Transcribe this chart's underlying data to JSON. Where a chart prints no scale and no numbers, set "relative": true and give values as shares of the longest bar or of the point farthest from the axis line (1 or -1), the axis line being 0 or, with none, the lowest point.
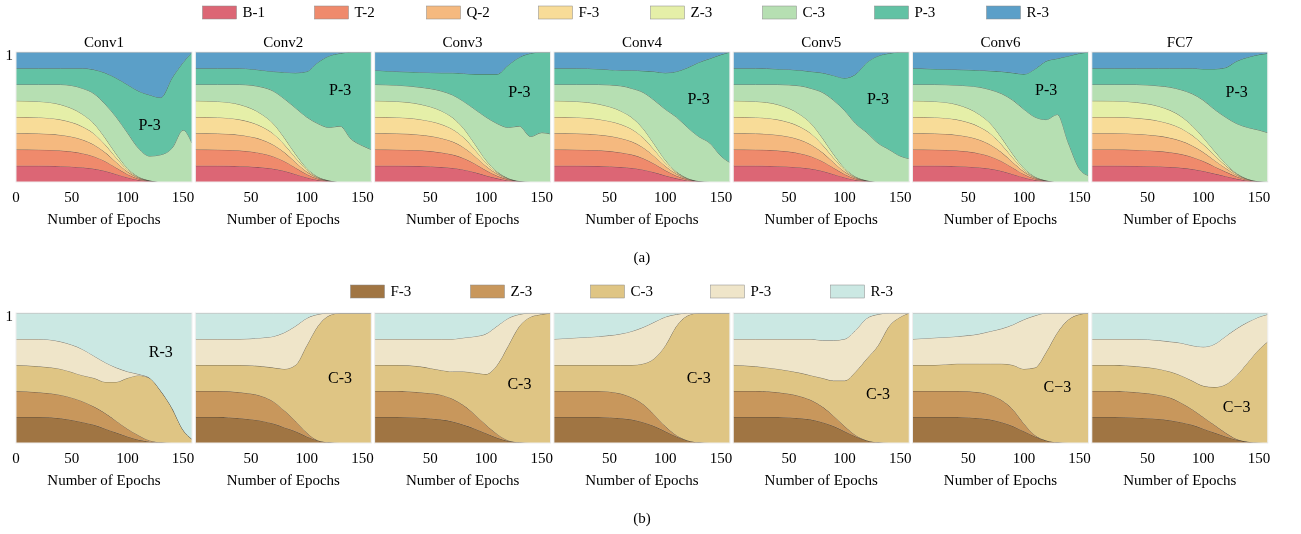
{
  "chart_data": [
    {
      "type": "area",
      "stacked": true,
      "relative": true,
      "title": "Conv1",
      "xlabel": "Number of Epochs",
      "legend": "top",
      "xlim": [
        0,
        158
      ],
      "xticks": [
        0,
        50,
        100,
        150
      ],
      "x": [
        0,
        20,
        40,
        60,
        70,
        80,
        90,
        100,
        110,
        120,
        130,
        140,
        150,
        158
      ],
      "annotations": [
        "1"
      ],
      "series": [
        {
          "name": "B-1",
          "color": "#dc6675",
          "values": [
            0.125,
            0.125,
            0.122,
            0.112,
            0.102,
            0.085,
            0.06,
            0.035,
            0.015,
            0.005,
            0,
            0,
            0,
            0
          ]
        },
        {
          "name": "T-2",
          "color": "#ef8a6c",
          "values": [
            0.125,
            0.124,
            0.12,
            0.108,
            0.095,
            0.075,
            0.05,
            0.025,
            0.01,
            0.003,
            0,
            0,
            0,
            0
          ]
        },
        {
          "name": "Q-2",
          "color": "#f5b97f",
          "values": [
            0.125,
            0.124,
            0.12,
            0.105,
            0.09,
            0.068,
            0.042,
            0.02,
            0.007,
            0.002,
            0,
            0,
            0,
            0
          ]
        },
        {
          "name": "F-3",
          "color": "#f8dc98",
          "values": [
            0.125,
            0.124,
            0.118,
            0.1,
            0.085,
            0.06,
            0.035,
            0.015,
            0.005,
            0.001,
            0,
            0,
            0,
            0
          ]
        },
        {
          "name": "Z-3",
          "color": "#e5efa8",
          "values": [
            0.125,
            0.123,
            0.116,
            0.095,
            0.078,
            0.052,
            0.028,
            0.012,
            0.004,
            0.001,
            0,
            0,
            0,
            0
          ]
        },
        {
          "name": "C-3",
          "color": "#b6dfb2",
          "values": [
            0.125,
            0.13,
            0.154,
            0.2,
            0.23,
            0.26,
            0.285,
            0.273,
            0.219,
            0.188,
            0.21,
            0.26,
            0.4,
            0.3
          ]
        },
        {
          "name": "P-3",
          "color": "#62c2a4",
          "values": [
            0.125,
            0.125,
            0.125,
            0.155,
            0.185,
            0.24,
            0.3,
            0.37,
            0.44,
            0.47,
            0.44,
            0.54,
            0.52,
            0.7
          ]
        },
        {
          "name": "R-3",
          "color": "#5b9fc8",
          "values": [
            0.125,
            0.125,
            0.125,
            0.125,
            0.135,
            0.16,
            0.2,
            0.25,
            0.3,
            0.33,
            0.35,
            0.2,
            0.08,
            0
          ]
        }
      ]
    },
    {
      "type": "area",
      "stacked": true,
      "relative": true,
      "title": "Conv2",
      "xlabel": "Number of Epochs",
      "xlim": [
        0,
        158
      ],
      "xticks": [
        50,
        100,
        150
      ],
      "x": [
        0,
        20,
        40,
        60,
        70,
        80,
        90,
        100,
        110,
        120,
        130,
        140,
        150,
        158
      ],
      "series": [
        {
          "color": "#dc6675",
          "values": [
            0.125,
            0.125,
            0.122,
            0.112,
            0.102,
            0.085,
            0.06,
            0.035,
            0.015,
            0.005,
            0,
            0,
            0,
            0
          ]
        },
        {
          "color": "#ef8a6c",
          "values": [
            0.125,
            0.124,
            0.12,
            0.108,
            0.095,
            0.075,
            0.05,
            0.025,
            0.01,
            0.003,
            0,
            0,
            0,
            0
          ]
        },
        {
          "color": "#f5b97f",
          "values": [
            0.125,
            0.124,
            0.12,
            0.105,
            0.09,
            0.068,
            0.042,
            0.02,
            0.007,
            0.002,
            0,
            0,
            0,
            0
          ]
        },
        {
          "color": "#f8dc98",
          "values": [
            0.125,
            0.124,
            0.118,
            0.1,
            0.085,
            0.06,
            0.035,
            0.015,
            0.005,
            0.001,
            0,
            0,
            0,
            0
          ]
        },
        {
          "color": "#e5efa8",
          "values": [
            0.125,
            0.123,
            0.116,
            0.095,
            0.078,
            0.052,
            0.028,
            0.012,
            0.004,
            0.001,
            0,
            0,
            0,
            0
          ]
        },
        {
          "color": "#b6dfb2",
          "values": [
            0.125,
            0.13,
            0.154,
            0.21,
            0.25,
            0.3,
            0.355,
            0.393,
            0.409,
            0.408,
            0.43,
            0.33,
            0.28,
            0.25
          ]
        },
        {
          "name": "P-3",
          "color": "#62c2a4",
          "values": [
            0.125,
            0.125,
            0.125,
            0.13,
            0.15,
            0.205,
            0.27,
            0.35,
            0.47,
            0.55,
            0.56,
            0.67,
            0.72,
            0.75
          ]
        },
        {
          "color": "#5b9fc8",
          "values": [
            0.125,
            0.125,
            0.125,
            0.14,
            0.15,
            0.155,
            0.16,
            0.15,
            0.08,
            0.03,
            0.01,
            0,
            0,
            0
          ]
        }
      ]
    },
    {
      "type": "area",
      "stacked": true,
      "relative": true,
      "title": "Conv3",
      "xlabel": "Number of Epochs",
      "xlim": [
        0,
        158
      ],
      "xticks": [
        50,
        100,
        150
      ],
      "x": [
        0,
        20,
        40,
        60,
        70,
        80,
        90,
        100,
        110,
        120,
        130,
        140,
        150,
        158
      ],
      "series": [
        {
          "color": "#dc6675",
          "values": [
            0.125,
            0.125,
            0.123,
            0.115,
            0.108,
            0.095,
            0.075,
            0.05,
            0.028,
            0.012,
            0.004,
            0,
            0,
            0
          ]
        },
        {
          "color": "#ef8a6c",
          "values": [
            0.125,
            0.124,
            0.121,
            0.112,
            0.103,
            0.088,
            0.066,
            0.04,
            0.02,
            0.007,
            0.002,
            0,
            0,
            0
          ]
        },
        {
          "color": "#f5b97f",
          "values": [
            0.125,
            0.124,
            0.12,
            0.11,
            0.1,
            0.083,
            0.058,
            0.033,
            0.015,
            0.005,
            0.001,
            0,
            0,
            0
          ]
        },
        {
          "color": "#f8dc98",
          "values": [
            0.125,
            0.124,
            0.119,
            0.107,
            0.095,
            0.076,
            0.05,
            0.026,
            0.01,
            0.003,
            0,
            0,
            0,
            0
          ]
        },
        {
          "color": "#e5efa8",
          "values": [
            0.125,
            0.123,
            0.117,
            0.103,
            0.09,
            0.07,
            0.044,
            0.02,
            0.007,
            0.002,
            0,
            0,
            0,
            0
          ]
        },
        {
          "color": "#b6dfb2",
          "values": [
            0.125,
            0.125,
            0.13,
            0.153,
            0.174,
            0.208,
            0.267,
            0.331,
            0.37,
            0.391,
            0.423,
            0.35,
            0.38,
            0.37
          ]
        },
        {
          "name": "P-3",
          "color": "#62c2a4",
          "values": [
            0.11,
            0.105,
            0.115,
            0.14,
            0.17,
            0.215,
            0.27,
            0.33,
            0.38,
            0.48,
            0.53,
            0.64,
            0.62,
            0.63
          ]
        },
        {
          "color": "#5b9fc8",
          "values": [
            0.14,
            0.15,
            0.155,
            0.16,
            0.16,
            0.165,
            0.17,
            0.17,
            0.17,
            0.1,
            0.04,
            0.01,
            0,
            0
          ]
        }
      ]
    },
    {
      "type": "area",
      "stacked": true,
      "relative": true,
      "title": "Conv4",
      "xlabel": "Number of Epochs",
      "xlim": [
        0,
        158
      ],
      "xticks": [
        50,
        100,
        150
      ],
      "x": [
        0,
        20,
        40,
        60,
        70,
        80,
        90,
        100,
        110,
        120,
        130,
        140,
        150,
        158
      ],
      "annotations": [
        "(a)"
      ],
      "series": [
        {
          "color": "#dc6675",
          "values": [
            0.125,
            0.125,
            0.123,
            0.115,
            0.108,
            0.095,
            0.075,
            0.05,
            0.028,
            0.012,
            0.004,
            0,
            0,
            0
          ]
        },
        {
          "color": "#ef8a6c",
          "values": [
            0.125,
            0.124,
            0.121,
            0.112,
            0.103,
            0.088,
            0.066,
            0.04,
            0.02,
            0.007,
            0.002,
            0,
            0,
            0
          ]
        },
        {
          "color": "#f5b97f",
          "values": [
            0.125,
            0.124,
            0.12,
            0.11,
            0.1,
            0.083,
            0.058,
            0.033,
            0.015,
            0.005,
            0.001,
            0,
            0,
            0
          ]
        },
        {
          "color": "#f8dc98",
          "values": [
            0.125,
            0.124,
            0.119,
            0.107,
            0.095,
            0.076,
            0.05,
            0.026,
            0.01,
            0.003,
            0,
            0,
            0,
            0
          ]
        },
        {
          "color": "#e5efa8",
          "values": [
            0.125,
            0.123,
            0.117,
            0.103,
            0.09,
            0.07,
            0.044,
            0.02,
            0.007,
            0.002,
            0,
            0,
            0,
            0
          ]
        },
        {
          "color": "#b6dfb2",
          "values": [
            0.125,
            0.13,
            0.15,
            0.193,
            0.224,
            0.278,
            0.337,
            0.391,
            0.42,
            0.391,
            0.343,
            0.3,
            0.2,
            0.15
          ]
        },
        {
          "name": "P-3",
          "color": "#62c2a4",
          "values": [
            0.125,
            0.125,
            0.12,
            0.12,
            0.14,
            0.165,
            0.22,
            0.28,
            0.35,
            0.46,
            0.57,
            0.65,
            0.78,
            0.85
          ]
        },
        {
          "color": "#5b9fc8",
          "values": [
            0.125,
            0.125,
            0.13,
            0.14,
            0.14,
            0.145,
            0.15,
            0.16,
            0.15,
            0.12,
            0.08,
            0.05,
            0.02,
            0
          ]
        }
      ]
    },
    {
      "type": "area",
      "stacked": true,
      "relative": true,
      "title": "Conv5",
      "xlabel": "Number of Epochs",
      "xlim": [
        0,
        158
      ],
      "xticks": [
        50,
        100,
        150
      ],
      "x": [
        0,
        20,
        40,
        60,
        70,
        80,
        90,
        100,
        110,
        120,
        130,
        140,
        150,
        158
      ],
      "series": [
        {
          "color": "#dc6675",
          "values": [
            0.125,
            0.125,
            0.122,
            0.112,
            0.102,
            0.085,
            0.06,
            0.035,
            0.015,
            0.005,
            0,
            0,
            0,
            0
          ]
        },
        {
          "color": "#ef8a6c",
          "values": [
            0.125,
            0.124,
            0.12,
            0.108,
            0.095,
            0.075,
            0.05,
            0.025,
            0.01,
            0.003,
            0,
            0,
            0,
            0
          ]
        },
        {
          "color": "#f5b97f",
          "values": [
            0.125,
            0.124,
            0.12,
            0.105,
            0.09,
            0.068,
            0.042,
            0.02,
            0.007,
            0.002,
            0,
            0,
            0,
            0
          ]
        },
        {
          "color": "#f8dc98",
          "values": [
            0.125,
            0.124,
            0.118,
            0.1,
            0.085,
            0.06,
            0.035,
            0.015,
            0.005,
            0.001,
            0,
            0,
            0,
            0
          ]
        },
        {
          "color": "#e5efa8",
          "values": [
            0.125,
            0.123,
            0.116,
            0.095,
            0.078,
            0.052,
            0.028,
            0.012,
            0.004,
            0.001,
            0,
            0,
            0,
            0
          ]
        },
        {
          "color": "#b6dfb2",
          "values": [
            0.125,
            0.13,
            0.154,
            0.22,
            0.27,
            0.35,
            0.415,
            0.443,
            0.409,
            0.368,
            0.3,
            0.25,
            0.2,
            0.18
          ]
        },
        {
          "name": "P-3",
          "color": "#62c2a4",
          "values": [
            0.125,
            0.125,
            0.12,
            0.12,
            0.13,
            0.15,
            0.19,
            0.25,
            0.38,
            0.54,
            0.67,
            0.74,
            0.8,
            0.82
          ]
        },
        {
          "color": "#5b9fc8",
          "values": [
            0.125,
            0.125,
            0.13,
            0.14,
            0.15,
            0.16,
            0.18,
            0.2,
            0.17,
            0.08,
            0.03,
            0.01,
            0,
            0
          ]
        }
      ]
    },
    {
      "type": "area",
      "stacked": true,
      "relative": true,
      "title": "Conv6",
      "xlabel": "Number of Epochs",
      "xlim": [
        0,
        158
      ],
      "xticks": [
        50,
        100,
        150
      ],
      "x": [
        0,
        20,
        40,
        60,
        70,
        80,
        90,
        100,
        110,
        120,
        130,
        140,
        150,
        158
      ],
      "series": [
        {
          "color": "#dc6675",
          "values": [
            0.125,
            0.125,
            0.122,
            0.112,
            0.102,
            0.085,
            0.06,
            0.035,
            0.015,
            0.005,
            0,
            0,
            0,
            0
          ]
        },
        {
          "color": "#ef8a6c",
          "values": [
            0.125,
            0.124,
            0.12,
            0.108,
            0.095,
            0.075,
            0.05,
            0.025,
            0.01,
            0.003,
            0,
            0,
            0,
            0
          ]
        },
        {
          "color": "#f5b97f",
          "values": [
            0.125,
            0.124,
            0.12,
            0.105,
            0.09,
            0.068,
            0.042,
            0.02,
            0.007,
            0.002,
            0,
            0,
            0,
            0
          ]
        },
        {
          "color": "#f8dc98",
          "values": [
            0.125,
            0.124,
            0.118,
            0.1,
            0.085,
            0.06,
            0.035,
            0.015,
            0.005,
            0.001,
            0,
            0,
            0,
            0
          ]
        },
        {
          "color": "#e5efa8",
          "values": [
            0.125,
            0.123,
            0.116,
            0.095,
            0.078,
            0.052,
            0.028,
            0.012,
            0.004,
            0.001,
            0,
            0,
            0,
            0
          ]
        },
        {
          "color": "#b6dfb2",
          "values": [
            0.125,
            0.13,
            0.149,
            0.21,
            0.26,
            0.34,
            0.415,
            0.453,
            0.459,
            0.468,
            0.52,
            0.3,
            0.1,
            0.05
          ]
        },
        {
          "name": "P-3",
          "color": "#62c2a4",
          "values": [
            0.125,
            0.12,
            0.12,
            0.13,
            0.145,
            0.17,
            0.21,
            0.27,
            0.37,
            0.45,
            0.43,
            0.67,
            0.89,
            0.95
          ]
        },
        {
          "color": "#5b9fc8",
          "values": [
            0.125,
            0.13,
            0.135,
            0.14,
            0.145,
            0.15,
            0.16,
            0.17,
            0.13,
            0.07,
            0.05,
            0.03,
            0.01,
            0
          ]
        }
      ]
    },
    {
      "type": "area",
      "stacked": true,
      "relative": true,
      "title": "FC7",
      "xlabel": "Number of Epochs",
      "xlim": [
        0,
        158
      ],
      "xticks": [
        50,
        100,
        150
      ],
      "x": [
        0,
        20,
        40,
        60,
        70,
        80,
        90,
        100,
        110,
        120,
        130,
        140,
        150,
        158
      ],
      "series": [
        {
          "color": "#dc6675",
          "values": [
            0.125,
            0.125,
            0.124,
            0.12,
            0.116,
            0.11,
            0.1,
            0.085,
            0.065,
            0.045,
            0.025,
            0.01,
            0.003,
            0
          ]
        },
        {
          "color": "#ef8a6c",
          "values": [
            0.125,
            0.125,
            0.123,
            0.118,
            0.113,
            0.105,
            0.093,
            0.076,
            0.055,
            0.035,
            0.017,
            0.006,
            0.001,
            0
          ]
        },
        {
          "color": "#f5b97f",
          "values": [
            0.125,
            0.125,
            0.123,
            0.117,
            0.111,
            0.102,
            0.088,
            0.069,
            0.048,
            0.028,
            0.012,
            0.004,
            0.001,
            0
          ]
        },
        {
          "color": "#f8dc98",
          "values": [
            0.125,
            0.125,
            0.122,
            0.115,
            0.108,
            0.097,
            0.08,
            0.06,
            0.04,
            0.02,
            0.008,
            0.002,
            0,
            0
          ]
        },
        {
          "color": "#e5efa8",
          "values": [
            0.125,
            0.124,
            0.121,
            0.113,
            0.105,
            0.092,
            0.074,
            0.053,
            0.032,
            0.015,
            0.005,
            0.001,
            0,
            0
          ]
        },
        {
          "color": "#b6dfb2",
          "values": [
            0.125,
            0.126,
            0.137,
            0.157,
            0.177,
            0.204,
            0.245,
            0.287,
            0.32,
            0.357,
            0.383,
            0.397,
            0.395,
            0.38
          ]
        },
        {
          "name": "P-3",
          "color": "#62c2a4",
          "values": [
            0.125,
            0.125,
            0.125,
            0.135,
            0.145,
            0.165,
            0.195,
            0.24,
            0.31,
            0.38,
            0.48,
            0.54,
            0.58,
            0.61
          ]
        },
        {
          "color": "#5b9fc8",
          "values": [
            0.125,
            0.125,
            0.125,
            0.125,
            0.125,
            0.125,
            0.125,
            0.13,
            0.13,
            0.12,
            0.07,
            0.04,
            0.02,
            0.01
          ]
        }
      ]
    },
    {
      "type": "area",
      "stacked": true,
      "relative": true,
      "xlabel": "Number of Epochs",
      "legend": "top",
      "xlim": [
        0,
        158
      ],
      "xticks": [
        0,
        50,
        100,
        150
      ],
      "x": [
        0,
        20,
        40,
        60,
        70,
        80,
        90,
        100,
        110,
        120,
        130,
        140,
        150,
        158
      ],
      "annotations": [
        "1"
      ],
      "series": [
        {
          "name": "F-3",
          "color": "#a07543",
          "values": [
            0.2,
            0.2,
            0.19,
            0.16,
            0.14,
            0.11,
            0.08,
            0.05,
            0.025,
            0.01,
            0.003,
            0,
            0,
            0
          ]
        },
        {
          "name": "Z-3",
          "color": "#c8975c",
          "values": [
            0.2,
            0.19,
            0.18,
            0.16,
            0.14,
            0.12,
            0.09,
            0.06,
            0.035,
            0.01,
            0.002,
            0,
            0,
            0
          ]
        },
        {
          "name": "C-3",
          "color": "#dfc584",
          "values": [
            0.2,
            0.2,
            0.2,
            0.2,
            0.22,
            0.24,
            0.3,
            0.39,
            0.46,
            0.48,
            0.395,
            0.27,
            0.1,
            0.03
          ]
        },
        {
          "name": "P-3",
          "color": "#efe5c9",
          "values": [
            0.2,
            0.21,
            0.21,
            0.2,
            0.17,
            0.15,
            0.11,
            0.05,
            0.01,
            0,
            0,
            0,
            0,
            0
          ]
        },
        {
          "name": "R-3",
          "color": "#cbe8e3",
          "values": [
            0.2,
            0.2,
            0.22,
            0.28,
            0.33,
            0.38,
            0.42,
            0.45,
            0.47,
            0.5,
            0.6,
            0.73,
            0.9,
            0.97
          ]
        }
      ]
    },
    {
      "type": "area",
      "stacked": true,
      "relative": true,
      "xlabel": "Number of Epochs",
      "xlim": [
        0,
        158
      ],
      "xticks": [
        50,
        100,
        150
      ],
      "x": [
        0,
        20,
        40,
        60,
        70,
        80,
        90,
        100,
        110,
        120,
        130,
        140,
        150,
        158
      ],
      "series": [
        {
          "color": "#a07543",
          "values": [
            0.2,
            0.2,
            0.19,
            0.17,
            0.15,
            0.12,
            0.09,
            0.05,
            0.02,
            0.005,
            0,
            0,
            0,
            0
          ]
        },
        {
          "color": "#c8975c",
          "values": [
            0.2,
            0.2,
            0.2,
            0.19,
            0.17,
            0.13,
            0.08,
            0.03,
            0,
            0,
            0,
            0,
            0,
            0
          ]
        },
        {
          "name": "C-3",
          "color": "#dfc584",
          "values": [
            0.2,
            0.2,
            0.21,
            0.23,
            0.26,
            0.32,
            0.43,
            0.67,
            0.88,
            0.975,
            1,
            1,
            1,
            1
          ]
        },
        {
          "color": "#efe5c9",
          "values": [
            0.2,
            0.2,
            0.2,
            0.22,
            0.24,
            0.28,
            0.3,
            0.21,
            0.09,
            0.02,
            0,
            0,
            0,
            0
          ]
        },
        {
          "color": "#cbe8e3",
          "values": [
            0.2,
            0.2,
            0.2,
            0.19,
            0.18,
            0.15,
            0.1,
            0.04,
            0.01,
            0,
            0,
            0,
            0,
            0
          ]
        }
      ]
    },
    {
      "type": "area",
      "stacked": true,
      "relative": true,
      "xlabel": "Number of Epochs",
      "xlim": [
        0,
        158
      ],
      "xticks": [
        50,
        100,
        150
      ],
      "x": [
        0,
        20,
        40,
        60,
        70,
        80,
        90,
        100,
        110,
        120,
        130,
        140,
        150,
        158
      ],
      "series": [
        {
          "color": "#a07543",
          "values": [
            0.2,
            0.2,
            0.195,
            0.18,
            0.165,
            0.14,
            0.11,
            0.075,
            0.04,
            0.015,
            0.003,
            0,
            0,
            0
          ]
        },
        {
          "color": "#c8975c",
          "values": [
            0.2,
            0.2,
            0.195,
            0.19,
            0.175,
            0.15,
            0.11,
            0.065,
            0.03,
            0.005,
            0.002,
            0,
            0,
            0
          ]
        },
        {
          "name": "C-3",
          "color": "#dfc584",
          "values": [
            0.2,
            0.2,
            0.2,
            0.19,
            0.21,
            0.26,
            0.32,
            0.39,
            0.53,
            0.73,
            0.895,
            0.97,
            0.99,
            1
          ]
        },
        {
          "color": "#efe5c9",
          "values": [
            0.2,
            0.2,
            0.21,
            0.24,
            0.25,
            0.26,
            0.28,
            0.31,
            0.3,
            0.21,
            0.09,
            0.03,
            0.01,
            0
          ]
        },
        {
          "color": "#cbe8e3",
          "values": [
            0.2,
            0.2,
            0.2,
            0.2,
            0.2,
            0.19,
            0.18,
            0.16,
            0.1,
            0.04,
            0.01,
            0,
            0,
            0
          ]
        }
      ]
    },
    {
      "type": "area",
      "stacked": true,
      "relative": true,
      "xlabel": "Number of Epochs",
      "xlim": [
        0,
        158
      ],
      "xticks": [
        50,
        100,
        150
      ],
      "x": [
        0,
        20,
        40,
        60,
        70,
        80,
        90,
        100,
        110,
        120,
        130,
        140,
        150,
        158
      ],
      "annotations": [
        "(b)"
      ],
      "series": [
        {
          "color": "#a07543",
          "values": [
            0.2,
            0.2,
            0.2,
            0.19,
            0.18,
            0.16,
            0.13,
            0.09,
            0.05,
            0.02,
            0.005,
            0,
            0,
            0
          ]
        },
        {
          "color": "#c8975c",
          "values": [
            0.2,
            0.2,
            0.2,
            0.19,
            0.17,
            0.14,
            0.09,
            0.04,
            0.01,
            0,
            0,
            0,
            0,
            0
          ]
        },
        {
          "name": "C-3",
          "color": "#dfc584",
          "values": [
            0.2,
            0.2,
            0.2,
            0.22,
            0.25,
            0.31,
            0.43,
            0.62,
            0.84,
            0.96,
            0.995,
            1,
            1,
            1
          ]
        },
        {
          "color": "#efe5c9",
          "values": [
            0.2,
            0.21,
            0.22,
            0.24,
            0.26,
            0.28,
            0.28,
            0.22,
            0.09,
            0.02,
            0,
            0,
            0,
            0
          ]
        },
        {
          "color": "#cbe8e3",
          "values": [
            0.2,
            0.19,
            0.18,
            0.16,
            0.14,
            0.11,
            0.07,
            0.03,
            0.01,
            0,
            0,
            0,
            0,
            0
          ]
        }
      ]
    },
    {
      "type": "area",
      "stacked": true,
      "relative": true,
      "xlabel": "Number of Epochs",
      "xlim": [
        0,
        158
      ],
      "xticks": [
        50,
        100,
        150
      ],
      "x": [
        0,
        20,
        40,
        60,
        70,
        80,
        90,
        100,
        110,
        120,
        130,
        140,
        150,
        158
      ],
      "series": [
        {
          "color": "#a07543",
          "values": [
            0.2,
            0.2,
            0.2,
            0.19,
            0.18,
            0.16,
            0.13,
            0.09,
            0.05,
            0.02,
            0.005,
            0,
            0,
            0
          ]
        },
        {
          "color": "#c8975c",
          "values": [
            0.2,
            0.2,
            0.19,
            0.17,
            0.15,
            0.12,
            0.08,
            0.04,
            0.01,
            0,
            0,
            0,
            0,
            0
          ]
        },
        {
          "name": "C-3",
          "color": "#dfc584",
          "values": [
            0.2,
            0.19,
            0.18,
            0.18,
            0.19,
            0.22,
            0.27,
            0.35,
            0.49,
            0.63,
            0.745,
            0.9,
            0.97,
            1
          ]
        },
        {
          "color": "#efe5c9",
          "values": [
            0.2,
            0.21,
            0.23,
            0.26,
            0.28,
            0.29,
            0.31,
            0.32,
            0.32,
            0.31,
            0.24,
            0.1,
            0.03,
            0
          ]
        },
        {
          "color": "#cbe8e3",
          "values": [
            0.2,
            0.2,
            0.2,
            0.2,
            0.2,
            0.21,
            0.21,
            0.2,
            0.13,
            0.04,
            0.01,
            0,
            0,
            0
          ]
        }
      ]
    },
    {
      "type": "area",
      "stacked": true,
      "relative": true,
      "xlabel": "Number of Epochs",
      "xlim": [
        0,
        158
      ],
      "xticks": [
        50,
        100,
        150
      ],
      "x": [
        0,
        20,
        40,
        60,
        70,
        80,
        90,
        100,
        110,
        120,
        130,
        140,
        150,
        158
      ],
      "series": [
        {
          "color": "#a07543",
          "values": [
            0.2,
            0.2,
            0.2,
            0.19,
            0.18,
            0.16,
            0.13,
            0.09,
            0.05,
            0.02,
            0.005,
            0,
            0,
            0
          ]
        },
        {
          "color": "#c8975c",
          "values": [
            0.2,
            0.2,
            0.2,
            0.2,
            0.19,
            0.17,
            0.13,
            0.06,
            0.01,
            0,
            0,
            0,
            0,
            0
          ]
        },
        {
          "name": "C−3",
          "color": "#dfc584",
          "values": [
            0.2,
            0.2,
            0.21,
            0.22,
            0.24,
            0.28,
            0.34,
            0.42,
            0.52,
            0.68,
            0.845,
            0.95,
            0.99,
            1
          ]
        },
        {
          "color": "#efe5c9",
          "values": [
            0.2,
            0.21,
            0.21,
            0.23,
            0.25,
            0.27,
            0.31,
            0.38,
            0.4,
            0.3,
            0.15,
            0.05,
            0.01,
            0
          ]
        },
        {
          "color": "#cbe8e3",
          "values": [
            0.2,
            0.19,
            0.18,
            0.16,
            0.14,
            0.12,
            0.09,
            0.05,
            0.02,
            0,
            0,
            0,
            0,
            0
          ]
        }
      ]
    },
    {
      "type": "area",
      "stacked": true,
      "relative": true,
      "xlabel": "Number of Epochs",
      "xlim": [
        0,
        158
      ],
      "xticks": [
        50,
        100,
        150
      ],
      "x": [
        0,
        20,
        40,
        60,
        70,
        80,
        90,
        100,
        110,
        120,
        130,
        140,
        150,
        158
      ],
      "series": [
        {
          "color": "#a07543",
          "values": [
            0.2,
            0.2,
            0.195,
            0.185,
            0.175,
            0.16,
            0.14,
            0.11,
            0.08,
            0.05,
            0.025,
            0.01,
            0.002,
            0
          ]
        },
        {
          "color": "#c8975c",
          "values": [
            0.2,
            0.2,
            0.195,
            0.185,
            0.175,
            0.15,
            0.12,
            0.09,
            0.06,
            0.03,
            0.005,
            0,
            0,
            0
          ]
        },
        {
          "name": "C−3",
          "color": "#dfc584",
          "values": [
            0.2,
            0.2,
            0.2,
            0.2,
            0.2,
            0.21,
            0.22,
            0.24,
            0.29,
            0.37,
            0.49,
            0.61,
            0.718,
            0.78
          ]
        },
        {
          "color": "#efe5c9",
          "values": [
            0.2,
            0.2,
            0.21,
            0.22,
            0.23,
            0.25,
            0.27,
            0.3,
            0.33,
            0.37,
            0.36,
            0.31,
            0.25,
            0.21
          ]
        },
        {
          "color": "#cbe8e3",
          "values": [
            0.2,
            0.2,
            0.2,
            0.21,
            0.22,
            0.23,
            0.25,
            0.26,
            0.24,
            0.18,
            0.12,
            0.07,
            0.03,
            0.01
          ]
        }
      ]
    }
  ]
}
